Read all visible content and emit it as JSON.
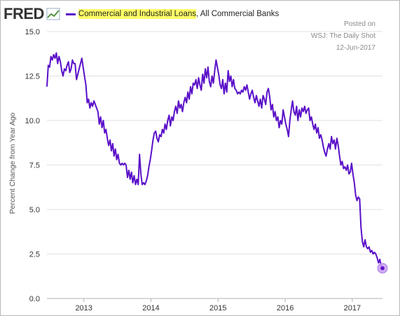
{
  "header": {
    "logo_text": "FRED",
    "logo_icon": "line-graph-icon",
    "series_title_highlighted": "Commercial and Industrial Loans",
    "series_title_rest": ", All Commercial Banks"
  },
  "watermark": {
    "line1": "Posted on",
    "line2": "WSJ: The Daily Shot",
    "line3": "12-Jun-2017"
  },
  "colors": {
    "series": "#5a10c8",
    "highlight": "#ffff66",
    "marker_fill": "#c99cf2",
    "grid": "#e0e0e0"
  },
  "chart_data": {
    "type": "line",
    "title": "Commercial and Industrial Loans, All Commercial Banks",
    "ylabel": "Percent Change from Year Ago",
    "xlabel": "",
    "ylim": [
      0,
      15
    ],
    "xlim": [
      2012.45,
      2017.45
    ],
    "yticks": [
      0.0,
      2.5,
      5.0,
      7.5,
      10.0,
      12.5,
      15.0
    ],
    "ytick_labels": [
      "0.0",
      "2.5",
      "5.0",
      "7.5",
      "10.0",
      "12.5",
      "15.0"
    ],
    "xticks": [
      2013,
      2014,
      2015,
      2016,
      2017
    ],
    "xtick_labels": [
      "2013",
      "2014",
      "2015",
      "2016",
      "2017"
    ],
    "grid": "horizontal",
    "series": [
      {
        "values": [
          [
            2012.45,
            11.9
          ],
          [
            2012.47,
            13.1
          ],
          [
            2012.49,
            13.0
          ],
          [
            2012.51,
            13.6
          ],
          [
            2012.53,
            13.4
          ],
          [
            2012.55,
            13.7
          ],
          [
            2012.57,
            13.5
          ],
          [
            2012.59,
            13.8
          ],
          [
            2012.61,
            13.2
          ],
          [
            2012.63,
            13.6
          ],
          [
            2012.65,
            13.3
          ],
          [
            2012.67,
            12.8
          ],
          [
            2012.69,
            12.5
          ],
          [
            2012.71,
            12.9
          ],
          [
            2012.73,
            12.8
          ],
          [
            2012.75,
            13.1
          ],
          [
            2012.77,
            13.3
          ],
          [
            2012.79,
            12.7
          ],
          [
            2012.81,
            12.9
          ],
          [
            2012.83,
            13.4
          ],
          [
            2012.85,
            13.2
          ],
          [
            2012.87,
            13.2
          ],
          [
            2012.89,
            12.3
          ],
          [
            2012.91,
            12.6
          ],
          [
            2012.93,
            12.9
          ],
          [
            2012.95,
            13.2
          ],
          [
            2012.97,
            13.5
          ],
          [
            2012.99,
            13.0
          ],
          [
            2013.01,
            12.5
          ],
          [
            2013.03,
            12.0
          ],
          [
            2013.05,
            11.0
          ],
          [
            2013.07,
            11.2
          ],
          [
            2013.09,
            10.7
          ],
          [
            2013.11,
            11.0
          ],
          [
            2013.13,
            10.8
          ],
          [
            2013.15,
            11.1
          ],
          [
            2013.17,
            10.9
          ],
          [
            2013.19,
            10.7
          ],
          [
            2013.21,
            10.5
          ],
          [
            2013.23,
            9.8
          ],
          [
            2013.25,
            10.2
          ],
          [
            2013.27,
            9.6
          ],
          [
            2013.29,
            10.0
          ],
          [
            2013.31,
            9.3
          ],
          [
            2013.33,
            9.5
          ],
          [
            2013.35,
            9.0
          ],
          [
            2013.37,
            8.6
          ],
          [
            2013.39,
            8.9
          ],
          [
            2013.41,
            8.3
          ],
          [
            2013.43,
            8.7
          ],
          [
            2013.45,
            8.0
          ],
          [
            2013.47,
            8.4
          ],
          [
            2013.49,
            7.8
          ],
          [
            2013.51,
            8.1
          ],
          [
            2013.53,
            7.6
          ],
          [
            2013.55,
            7.5
          ],
          [
            2013.57,
            7.6
          ],
          [
            2013.59,
            7.5
          ],
          [
            2013.61,
            7.6
          ],
          [
            2013.63,
            7.5
          ],
          [
            2013.65,
            6.8
          ],
          [
            2013.67,
            7.2
          ],
          [
            2013.69,
            6.7
          ],
          [
            2013.71,
            7.1
          ],
          [
            2013.73,
            6.5
          ],
          [
            2013.75,
            6.9
          ],
          [
            2013.77,
            6.4
          ],
          [
            2013.79,
            6.7
          ],
          [
            2013.81,
            6.4
          ],
          [
            2013.83,
            8.1
          ],
          [
            2013.85,
            7.0
          ],
          [
            2013.87,
            6.4
          ],
          [
            2013.89,
            6.5
          ],
          [
            2013.91,
            6.4
          ],
          [
            2013.93,
            6.6
          ],
          [
            2013.95,
            6.9
          ],
          [
            2013.97,
            7.4
          ],
          [
            2013.99,
            7.8
          ],
          [
            2014.01,
            8.3
          ],
          [
            2014.03,
            8.9
          ],
          [
            2014.05,
            9.3
          ],
          [
            2014.07,
            9.4
          ],
          [
            2014.09,
            9.0
          ],
          [
            2014.11,
            8.8
          ],
          [
            2014.13,
            9.2
          ],
          [
            2014.15,
            9.1
          ],
          [
            2014.17,
            9.5
          ],
          [
            2014.19,
            9.3
          ],
          [
            2014.21,
            9.8
          ],
          [
            2014.23,
            9.5
          ],
          [
            2014.25,
            10.0
          ],
          [
            2014.27,
            10.3
          ],
          [
            2014.29,
            9.7
          ],
          [
            2014.31,
            10.2
          ],
          [
            2014.33,
            10.0
          ],
          [
            2014.35,
            10.5
          ],
          [
            2014.37,
            10.8
          ],
          [
            2014.39,
            10.4
          ],
          [
            2014.41,
            11.1
          ],
          [
            2014.43,
            10.7
          ],
          [
            2014.45,
            10.9
          ],
          [
            2014.47,
            10.5
          ],
          [
            2014.49,
            11.0
          ],
          [
            2014.51,
            11.3
          ],
          [
            2014.53,
            11.0
          ],
          [
            2014.55,
            11.6
          ],
          [
            2014.57,
            11.2
          ],
          [
            2014.59,
            11.9
          ],
          [
            2014.61,
            11.5
          ],
          [
            2014.63,
            12.1
          ],
          [
            2014.65,
            12.0
          ],
          [
            2014.67,
            12.3
          ],
          [
            2014.69,
            11.8
          ],
          [
            2014.71,
            12.4
          ],
          [
            2014.73,
            12.0
          ],
          [
            2014.75,
            11.7
          ],
          [
            2014.77,
            12.6
          ],
          [
            2014.79,
            12.1
          ],
          [
            2014.81,
            12.9
          ],
          [
            2014.83,
            12.4
          ],
          [
            2014.85,
            13.0
          ],
          [
            2014.87,
            12.2
          ],
          [
            2014.89,
            11.9
          ],
          [
            2014.91,
            12.5
          ],
          [
            2014.93,
            12.1
          ],
          [
            2014.95,
            12.8
          ],
          [
            2014.97,
            13.4
          ],
          [
            2014.99,
            13.0
          ],
          [
            2015.01,
            12.6
          ],
          [
            2015.03,
            12.0
          ],
          [
            2015.05,
            11.8
          ],
          [
            2015.07,
            12.3
          ],
          [
            2015.09,
            11.5
          ],
          [
            2015.11,
            12.1
          ],
          [
            2015.13,
            11.6
          ],
          [
            2015.15,
            12.8
          ],
          [
            2015.17,
            12.2
          ],
          [
            2015.19,
            12.5
          ],
          [
            2015.21,
            11.9
          ],
          [
            2015.23,
            12.3
          ],
          [
            2015.25,
            11.8
          ],
          [
            2015.27,
            11.7
          ],
          [
            2015.29,
            11.5
          ],
          [
            2015.31,
            11.6
          ],
          [
            2015.33,
            11.5
          ],
          [
            2015.35,
            11.7
          ],
          [
            2015.37,
            11.6
          ],
          [
            2015.39,
            11.9
          ],
          [
            2015.41,
            11.7
          ],
          [
            2015.43,
            12.0
          ],
          [
            2015.45,
            11.6
          ],
          [
            2015.47,
            11.2
          ],
          [
            2015.49,
            11.5
          ],
          [
            2015.51,
            11.7
          ],
          [
            2015.53,
            11.3
          ],
          [
            2015.55,
            11.0
          ],
          [
            2015.57,
            11.4
          ],
          [
            2015.59,
            11.1
          ],
          [
            2015.61,
            10.8
          ],
          [
            2015.63,
            11.2
          ],
          [
            2015.65,
            10.7
          ],
          [
            2015.67,
            11.4
          ],
          [
            2015.69,
            11.2
          ],
          [
            2015.71,
            10.9
          ],
          [
            2015.73,
            11.6
          ],
          [
            2015.75,
            11.8
          ],
          [
            2015.77,
            11.3
          ],
          [
            2015.79,
            10.6
          ],
          [
            2015.81,
            10.9
          ],
          [
            2015.83,
            10.2
          ],
          [
            2015.85,
            10.5
          ],
          [
            2015.87,
            10.0
          ],
          [
            2015.89,
            10.2
          ],
          [
            2015.91,
            9.6
          ],
          [
            2015.93,
            10.0
          ],
          [
            2015.95,
            9.8
          ],
          [
            2015.97,
            10.6
          ],
          [
            2015.99,
            10.2
          ],
          [
            2016.01,
            9.8
          ],
          [
            2016.03,
            9.5
          ],
          [
            2016.05,
            9.1
          ],
          [
            2016.07,
            10.0
          ],
          [
            2016.09,
            10.6
          ],
          [
            2016.11,
            11.1
          ],
          [
            2016.13,
            10.5
          ],
          [
            2016.15,
            10.3
          ],
          [
            2016.17,
            10.8
          ],
          [
            2016.19,
            10.0
          ],
          [
            2016.21,
            10.6
          ],
          [
            2016.23,
            10.2
          ],
          [
            2016.25,
            10.7
          ],
          [
            2016.27,
            10.5
          ],
          [
            2016.29,
            10.8
          ],
          [
            2016.31,
            10.4
          ],
          [
            2016.33,
            10.6
          ],
          [
            2016.35,
            10.7
          ],
          [
            2016.37,
            10.0
          ],
          [
            2016.39,
            10.2
          ],
          [
            2016.41,
            9.8
          ],
          [
            2016.43,
            9.5
          ],
          [
            2016.45,
            9.8
          ],
          [
            2016.47,
            9.3
          ],
          [
            2016.49,
            9.6
          ],
          [
            2016.51,
            9.0
          ],
          [
            2016.53,
            9.2
          ],
          [
            2016.55,
            8.9
          ],
          [
            2016.57,
            8.5
          ],
          [
            2016.59,
            8.2
          ],
          [
            2016.61,
            8.0
          ],
          [
            2016.63,
            8.4
          ],
          [
            2016.65,
            8.7
          ],
          [
            2016.67,
            8.4
          ],
          [
            2016.69,
            9.1
          ],
          [
            2016.71,
            8.7
          ],
          [
            2016.73,
            8.9
          ],
          [
            2016.75,
            8.4
          ],
          [
            2016.77,
            9.0
          ],
          [
            2016.79,
            8.6
          ],
          [
            2016.81,
            8.0
          ],
          [
            2016.83,
            7.5
          ],
          [
            2016.85,
            7.7
          ],
          [
            2016.87,
            7.3
          ],
          [
            2016.89,
            7.4
          ],
          [
            2016.91,
            7.2
          ],
          [
            2016.93,
            7.5
          ],
          [
            2016.95,
            7.0
          ],
          [
            2016.97,
            7.1
          ],
          [
            2016.99,
            7.6
          ],
          [
            2017.01,
            7.0
          ],
          [
            2017.03,
            6.5
          ],
          [
            2017.05,
            5.8
          ],
          [
            2017.07,
            5.5
          ],
          [
            2017.09,
            5.7
          ],
          [
            2017.11,
            5.6
          ],
          [
            2017.13,
            4.0
          ],
          [
            2017.15,
            3.2
          ],
          [
            2017.17,
            2.9
          ],
          [
            2017.19,
            3.3
          ],
          [
            2017.21,
            2.9
          ],
          [
            2017.23,
            2.8
          ],
          [
            2017.25,
            2.9
          ],
          [
            2017.27,
            2.6
          ],
          [
            2017.29,
            2.7
          ],
          [
            2017.31,
            2.5
          ],
          [
            2017.33,
            2.6
          ],
          [
            2017.35,
            2.5
          ],
          [
            2017.37,
            2.3
          ],
          [
            2017.39,
            2.0
          ],
          [
            2017.41,
            2.2
          ],
          [
            2017.43,
            1.8
          ],
          [
            2017.45,
            1.7
          ]
        ]
      }
    ],
    "highlighted_point": [
      2017.45,
      1.7
    ]
  }
}
